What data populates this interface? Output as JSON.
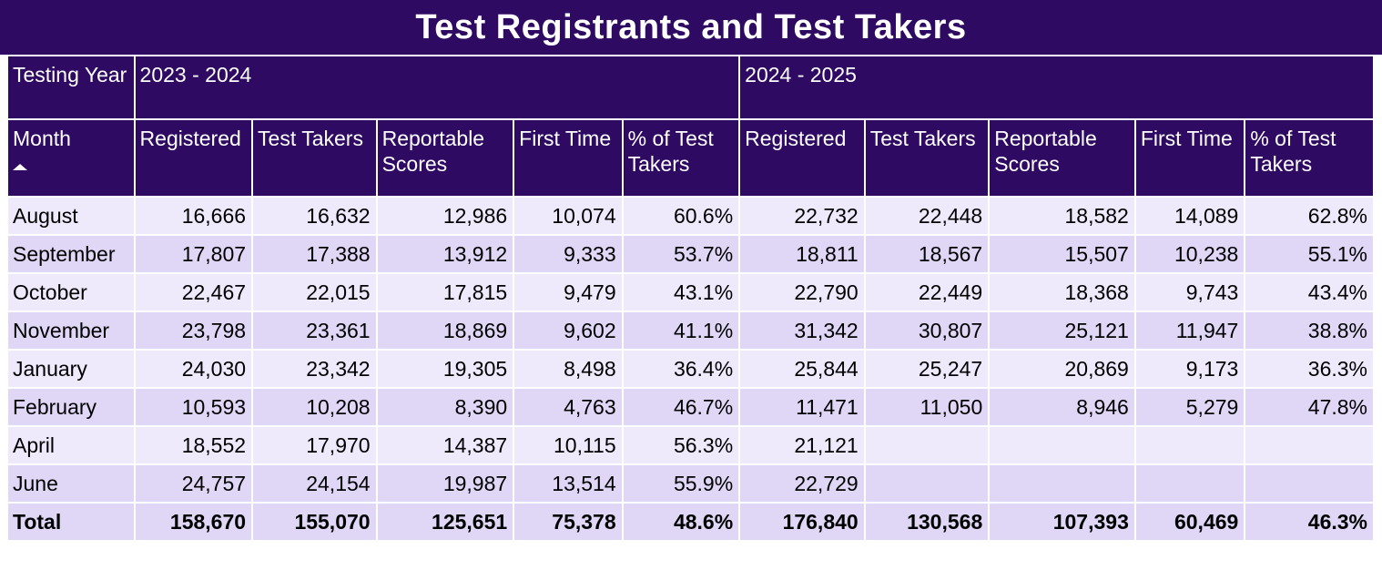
{
  "title": "Test Registrants and Test Takers",
  "colors": {
    "header": "#2e0a63",
    "row_light": "#efe9fc",
    "row_dark": "#e0d6f6"
  },
  "table": {
    "year_label": "Testing Year",
    "years": [
      "2023 - 2024",
      "2024 - 2025"
    ],
    "month_label": "Month",
    "sort_icon": "sort-ascending-icon",
    "columns": [
      "Registered",
      "Test Takers",
      "Reportable Scores",
      "First Time",
      "% of Test Takers"
    ],
    "rows": [
      {
        "month": "August",
        "y1": [
          "16,666",
          "16,632",
          "12,986",
          "10,074",
          "60.6%"
        ],
        "y2": [
          "22,732",
          "22,448",
          "18,582",
          "14,089",
          "62.8%"
        ]
      },
      {
        "month": "September",
        "y1": [
          "17,807",
          "17,388",
          "13,912",
          "9,333",
          "53.7%"
        ],
        "y2": [
          "18,811",
          "18,567",
          "15,507",
          "10,238",
          "55.1%"
        ]
      },
      {
        "month": "October",
        "y1": [
          "22,467",
          "22,015",
          "17,815",
          "9,479",
          "43.1%"
        ],
        "y2": [
          "22,790",
          "22,449",
          "18,368",
          "9,743",
          "43.4%"
        ]
      },
      {
        "month": "November",
        "y1": [
          "23,798",
          "23,361",
          "18,869",
          "9,602",
          "41.1%"
        ],
        "y2": [
          "31,342",
          "30,807",
          "25,121",
          "11,947",
          "38.8%"
        ]
      },
      {
        "month": "January",
        "y1": [
          "24,030",
          "23,342",
          "19,305",
          "8,498",
          "36.4%"
        ],
        "y2": [
          "25,844",
          "25,247",
          "20,869",
          "9,173",
          "36.3%"
        ]
      },
      {
        "month": "February",
        "y1": [
          "10,593",
          "10,208",
          "8,390",
          "4,763",
          "46.7%"
        ],
        "y2": [
          "11,471",
          "11,050",
          "8,946",
          "5,279",
          "47.8%"
        ]
      },
      {
        "month": "April",
        "y1": [
          "18,552",
          "17,970",
          "14,387",
          "10,115",
          "56.3%"
        ],
        "y2": [
          "21,121",
          "",
          "",
          "",
          ""
        ]
      },
      {
        "month": "June",
        "y1": [
          "24,757",
          "24,154",
          "19,987",
          "13,514",
          "55.9%"
        ],
        "y2": [
          "22,729",
          "",
          "",
          "",
          ""
        ]
      }
    ],
    "total": {
      "label": "Total",
      "y1": [
        "158,670",
        "155,070",
        "125,651",
        "75,378",
        "48.6%"
      ],
      "y2": [
        "176,840",
        "130,568",
        "107,393",
        "60,469",
        "46.3%"
      ]
    }
  }
}
